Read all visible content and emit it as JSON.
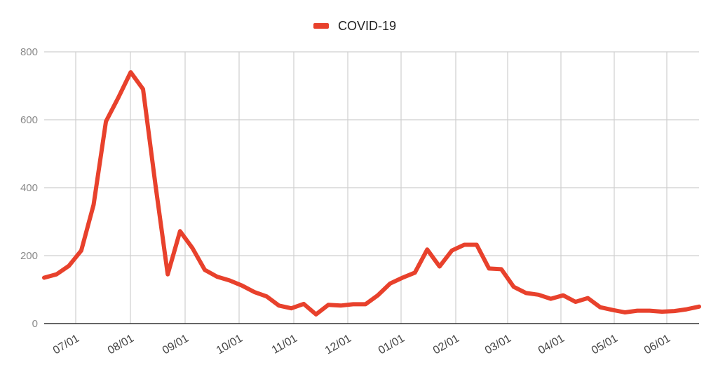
{
  "chart_data": {
    "type": "line",
    "title": "",
    "xlabel": "",
    "ylabel": "",
    "ylim": [
      0,
      800
    ],
    "y_ticks": [
      "0",
      "200",
      "400",
      "600",
      "800"
    ],
    "x_tick_labels": [
      "07/01",
      "08/01",
      "09/01",
      "10/01",
      "11/01",
      "12/01",
      "01/01",
      "02/01",
      "03/01",
      "04/01",
      "05/01",
      "06/01"
    ],
    "grid": true,
    "legend": "top-center",
    "series": [
      {
        "name": "COVID-19",
        "color": "#e8412c",
        "values": [
          135,
          145,
          170,
          215,
          350,
          595,
          665,
          740,
          690,
          410,
          145,
          272,
          222,
          158,
          138,
          127,
          112,
          93,
          80,
          53,
          45,
          58,
          27,
          55,
          53,
          57,
          57,
          83,
          118,
          135,
          150,
          218,
          168,
          215,
          232,
          232,
          162,
          160,
          108,
          90,
          85,
          73,
          83,
          64,
          75,
          48,
          40,
          33,
          38,
          38,
          35,
          37,
          42,
          50
        ]
      }
    ]
  }
}
